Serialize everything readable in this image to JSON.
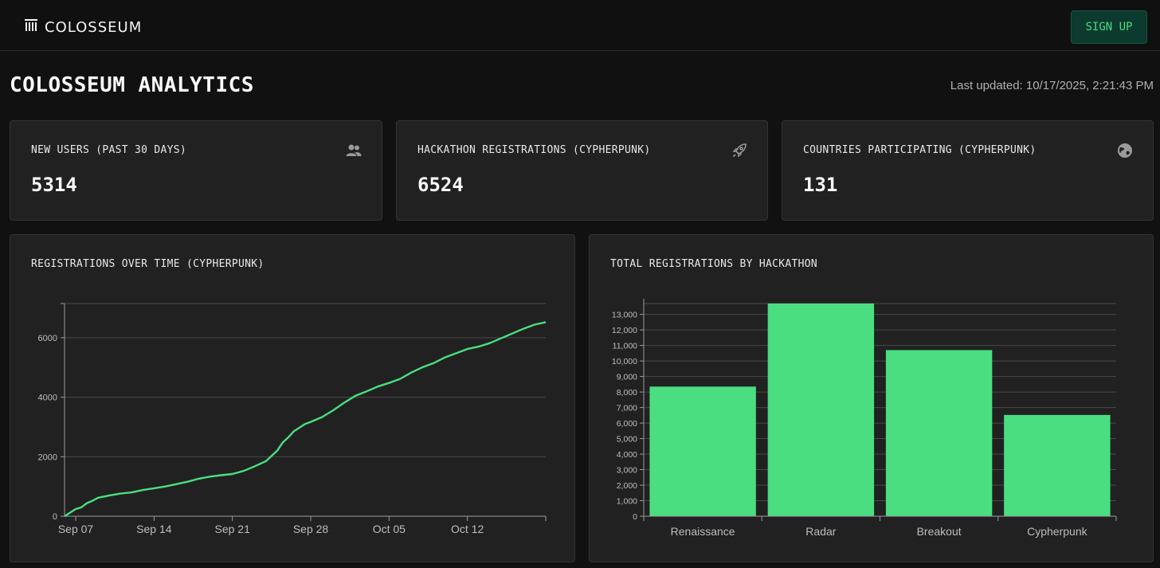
{
  "app": {
    "name": "COLOSSEUM",
    "signup_label": "SIGN UP"
  },
  "page": {
    "title": "COLOSSEUM ANALYTICS",
    "last_updated": "Last updated: 10/17/2025, 2:21:43 PM"
  },
  "stats": [
    {
      "label": "NEW USERS (PAST 30 DAYS)",
      "value": "5314",
      "icon": "users-icon"
    },
    {
      "label": "HACKATHON REGISTRATIONS (CYPHERPUNK)",
      "value": "6524",
      "icon": "rocket-icon"
    },
    {
      "label": "COUNTRIES PARTICIPATING (CYPHERPUNK)",
      "value": "131",
      "icon": "globe-icon"
    }
  ],
  "colors": {
    "accent": "#4ade80",
    "card": "#212121",
    "background": "#111111"
  },
  "chart_data": [
    {
      "type": "line",
      "title": "REGISTRATIONS OVER TIME (CYPHERPUNK)",
      "xlabel": "",
      "ylabel": "",
      "x_ticks": [
        "Sep 07",
        "Sep 14",
        "Sep 21",
        "Sep 28",
        "Oct 05",
        "Oct 12"
      ],
      "x_tick_days": [
        1,
        8,
        15,
        22,
        29,
        36
      ],
      "y_ticks": [
        0,
        2000,
        4000,
        6000
      ],
      "ylim": [
        0,
        7150
      ],
      "xlim": [
        0,
        43
      ],
      "grid": true,
      "series": [
        {
          "name": "Registrations",
          "x": [
            0,
            0.5,
            1,
            1.5,
            2,
            2.5,
            3,
            3.5,
            4,
            5,
            6,
            7,
            8,
            9,
            10,
            11,
            12,
            13,
            14,
            15,
            16,
            17,
            18,
            19,
            19.5,
            20,
            20.5,
            21,
            21.5,
            22,
            23,
            24,
            25,
            26,
            27,
            28,
            29,
            30,
            31,
            32,
            33,
            34,
            35,
            36,
            37,
            38,
            39,
            40,
            41,
            42,
            43
          ],
          "values": [
            0,
            120,
            240,
            300,
            440,
            520,
            620,
            660,
            700,
            760,
            800,
            880,
            940,
            1000,
            1080,
            1160,
            1260,
            1330,
            1380,
            1420,
            1520,
            1680,
            1850,
            2200,
            2480,
            2650,
            2860,
            2980,
            3100,
            3170,
            3330,
            3560,
            3820,
            4050,
            4200,
            4360,
            4480,
            4620,
            4830,
            5010,
            5150,
            5340,
            5480,
            5620,
            5700,
            5820,
            5980,
            6140,
            6300,
            6440,
            6524
          ]
        }
      ]
    },
    {
      "type": "bar",
      "title": "TOTAL REGISTRATIONS BY HACKATHON",
      "xlabel": "",
      "ylabel": "",
      "categories": [
        "Renaissance",
        "Radar",
        "Breakout",
        "Cypherpunk"
      ],
      "values": [
        8350,
        13700,
        10700,
        6524
      ],
      "y_ticks": [
        0,
        1000,
        2000,
        3000,
        4000,
        5000,
        6000,
        7000,
        8000,
        9000,
        10000,
        11000,
        12000,
        13000
      ],
      "y_tick_labels": [
        "0",
        "1,000",
        "2,000",
        "3,000",
        "4,000",
        "5,000",
        "6,000",
        "7,000",
        "8,000",
        "9,000",
        "10,000",
        "11,000",
        "12,000",
        "13,000"
      ],
      "ylim": [
        0,
        13700
      ],
      "grid": true
    }
  ]
}
